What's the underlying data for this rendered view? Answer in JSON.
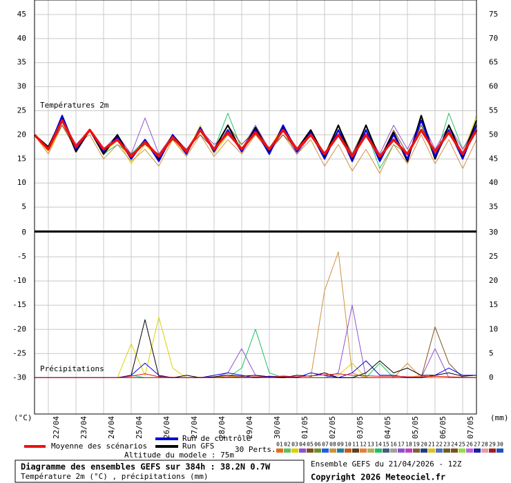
{
  "chart_data": [
    {
      "type": "line",
      "title": "Températures 2m",
      "ylim": [
        0,
        48
      ],
      "yticks": [
        5,
        10,
        15,
        20,
        25,
        30,
        35,
        40,
        45
      ],
      "y2lim": [
        30,
        78
      ],
      "y2ticks": [
        35,
        40,
        45,
        50,
        55,
        60,
        65,
        70,
        75
      ],
      "grid": true,
      "series": [
        {
          "color": "#e0d000",
          "values": [
            20,
            16.5,
            22,
            17,
            21,
            16,
            19,
            14,
            18,
            15,
            19,
            16,
            22,
            16,
            20,
            17,
            21,
            17,
            22,
            16,
            21,
            15,
            21,
            16,
            21,
            15,
            19,
            16,
            22,
            15,
            21,
            16,
            24
          ]
        },
        {
          "color": "#20c060",
          "values": [
            20,
            17,
            23,
            17,
            21,
            16,
            18,
            16,
            19,
            15,
            20,
            16,
            21,
            17,
            24.5,
            17,
            22,
            16,
            21,
            16,
            20,
            15,
            21,
            15,
            21,
            13,
            18,
            16,
            22,
            15,
            24.5,
            17,
            22
          ]
        },
        {
          "color": "#d09040",
          "values": [
            20,
            16,
            22,
            18,
            20,
            15,
            18,
            14.5,
            17,
            13.5,
            19,
            15.5,
            20,
            15.5,
            19,
            16,
            20,
            16.5,
            20,
            16,
            19,
            13.5,
            18,
            12.5,
            17,
            12,
            18,
            14,
            20,
            14,
            19,
            13,
            19
          ]
        },
        {
          "color": "#9050d0",
          "values": [
            20,
            17,
            23,
            18,
            21,
            17,
            20,
            16,
            23.5,
            16,
            20,
            17,
            21,
            18,
            20,
            17,
            22,
            17,
            21,
            16,
            20,
            16,
            21,
            16,
            21,
            16,
            22,
            17,
            23,
            17,
            22,
            17,
            22
          ]
        },
        {
          "color": "#805020",
          "values": [
            20,
            17,
            22,
            17,
            21,
            17,
            19,
            16,
            18,
            16,
            19,
            17,
            20,
            17,
            22,
            18,
            21,
            17,
            20,
            17,
            21,
            16,
            22,
            16,
            22,
            15,
            21,
            16,
            22,
            16,
            21,
            16,
            21
          ]
        },
        {
          "name": "Run GFS",
          "color": "#000000",
          "values": [
            20,
            17.5,
            23.5,
            16.5,
            21,
            16,
            20,
            15,
            19,
            15,
            20,
            16.5,
            21,
            17,
            22,
            16.5,
            21.5,
            16.5,
            21.5,
            17,
            21,
            15.5,
            22,
            15,
            22,
            15,
            20.5,
            14.5,
            24,
            15,
            22,
            15.5,
            23
          ]
        },
        {
          "name": "Run de contrôle",
          "color": "#0000e0",
          "values": [
            20,
            17,
            24,
            17,
            21,
            16.5,
            19.5,
            15,
            19,
            14.5,
            20,
            16,
            21.5,
            16.5,
            21,
            16.5,
            21,
            16,
            22,
            16.5,
            20.5,
            15,
            21,
            14.5,
            21,
            14.5,
            20,
            15,
            23,
            15.5,
            21,
            15,
            22
          ]
        },
        {
          "name": "Moyenne des scénarios",
          "color": "#ee1010",
          "values": [
            20,
            17,
            23,
            17.5,
            21,
            17,
            19,
            15.5,
            18.5,
            15.5,
            19.5,
            16.5,
            21,
            17,
            20.5,
            17,
            20.5,
            17,
            21,
            17,
            20,
            16,
            20,
            15.5,
            20,
            15.5,
            19,
            16,
            21,
            16.5,
            20.5,
            16,
            21
          ]
        }
      ]
    },
    {
      "type": "line",
      "title": "Précipitations",
      "ylim": [
        -37.5,
        0
      ],
      "yticks": [
        0,
        -5,
        -10,
        -15,
        -20,
        -25,
        -30
      ],
      "y2lim": [
        -7.5,
        30
      ],
      "y2ticks": [
        0,
        5,
        10,
        15,
        20,
        25,
        30
      ],
      "grid": true,
      "series": [
        {
          "axis": "y2",
          "color": "#e0d000",
          "values": [
            0,
            0,
            0,
            0,
            0,
            0,
            0,
            7,
            0.5,
            12.5,
            2,
            0,
            0,
            0,
            0.5,
            0,
            0,
            0,
            0.5,
            0,
            0,
            0,
            0.5,
            3,
            0,
            0,
            0,
            0,
            0.5,
            0,
            0,
            0,
            0
          ]
        },
        {
          "axis": "y2",
          "color": "#20c060",
          "values": [
            0,
            0,
            0,
            0,
            0,
            0,
            0,
            0.5,
            0,
            0,
            0,
            0,
            0,
            0,
            0,
            2,
            10,
            1,
            0,
            0,
            0,
            0,
            0,
            0,
            0,
            3,
            0,
            0,
            0,
            0,
            0,
            0,
            0
          ]
        },
        {
          "axis": "y2",
          "color": "#d09040",
          "values": [
            0,
            0,
            0,
            0,
            0,
            0,
            0,
            0,
            0,
            0,
            0,
            0,
            0,
            0,
            0,
            0,
            0,
            0,
            0,
            0,
            0,
            18,
            26,
            1,
            0,
            0,
            0,
            3,
            0,
            0,
            0,
            0,
            0
          ]
        },
        {
          "axis": "y2",
          "color": "#9050d0",
          "values": [
            0,
            0,
            0,
            0,
            0,
            0,
            0,
            0,
            0,
            0,
            0,
            0,
            0,
            0,
            1,
            6,
            0.5,
            0,
            0,
            0,
            0,
            0,
            1,
            15,
            0,
            0,
            0,
            0,
            0,
            6,
            0,
            0,
            0
          ]
        },
        {
          "axis": "y2",
          "color": "#805020",
          "values": [
            0,
            0,
            0,
            0,
            0,
            0,
            0,
            0,
            0,
            0,
            0,
            0,
            0,
            0,
            0,
            0,
            0,
            0,
            0,
            0,
            0,
            0,
            0,
            0,
            0,
            0,
            0,
            0,
            0,
            10.5,
            3,
            0,
            0
          ]
        },
        {
          "axis": "y2",
          "color": "#000000",
          "values": [
            0,
            0,
            0,
            0,
            0,
            0,
            0,
            0.5,
            12,
            0.3,
            0,
            0.5,
            0,
            0.2,
            0.5,
            0.3,
            0.5,
            0.2,
            0,
            0.5,
            0.3,
            1,
            0,
            0,
            1,
            3.5,
            1,
            2,
            0.5,
            0.5,
            1,
            0.3,
            0.5
          ]
        },
        {
          "axis": "y2",
          "color": "#0000e0",
          "values": [
            0,
            0,
            0,
            0,
            0,
            0,
            0,
            0.5,
            3,
            0.5,
            0,
            0,
            0,
            0.5,
            1,
            0.5,
            0,
            0.3,
            0.2,
            0,
            1,
            0.5,
            0,
            1,
            3.5,
            0.5,
            0.5,
            0,
            0,
            0.5,
            2,
            0.5,
            0.5
          ]
        },
        {
          "axis": "y2",
          "color": "#ee1010",
          "values": [
            0,
            0,
            0,
            0,
            0,
            0,
            0,
            0.3,
            0.8,
            0.2,
            0.1,
            0,
            0.1,
            0,
            0.2,
            0.1,
            0.2,
            0.1,
            0.3,
            0.2,
            0.4,
            0.6,
            0.8,
            0.5,
            0.4,
            0.3,
            0.3,
            0.2,
            0.2,
            0.3,
            0.2,
            0.1,
            0
          ]
        }
      ]
    }
  ],
  "x_labels": [
    "22/04",
    "23/04",
    "24/04",
    "25/04",
    "26/04",
    "27/04",
    "28/04",
    "29/04",
    "30/04",
    "01/05",
    "02/05",
    "03/05",
    "04/05",
    "05/05",
    "06/05",
    "07/05"
  ],
  "unit_left": "(°C)",
  "unit_right": "(mm)",
  "altitude": "Altitude du modele : 75m",
  "perts_label": "30 Perts.",
  "perts": [
    {
      "label": "01",
      "color": "#e07020"
    },
    {
      "label": "02",
      "color": "#60c060"
    },
    {
      "label": "03",
      "color": "#e0d000"
    },
    {
      "label": "04",
      "color": "#9050d0"
    },
    {
      "label": "05",
      "color": "#805020"
    },
    {
      "label": "06",
      "color": "#709030"
    },
    {
      "label": "07",
      "color": "#2060e0"
    },
    {
      "label": "08",
      "color": "#d09040"
    },
    {
      "label": "09",
      "color": "#2080a0"
    },
    {
      "label": "10",
      "color": "#c06020"
    },
    {
      "label": "11",
      "color": "#604020"
    },
    {
      "label": "12",
      "color": "#e08040"
    },
    {
      "label": "13",
      "color": "#b0b060"
    },
    {
      "label": "14",
      "color": "#20c060"
    },
    {
      "label": "15",
      "color": "#406080"
    },
    {
      "label": "16",
      "color": "#a0a0a0"
    },
    {
      "label": "17",
      "color": "#9050d0"
    },
    {
      "label": "18",
      "color": "#c040c0"
    },
    {
      "label": "19",
      "color": "#806040"
    },
    {
      "label": "20",
      "color": "#204080"
    },
    {
      "label": "21",
      "color": "#e0c020"
    },
    {
      "label": "22",
      "color": "#5070c0"
    },
    {
      "label": "23",
      "color": "#706020"
    },
    {
      "label": "24",
      "color": "#805020"
    },
    {
      "label": "25",
      "color": "#90e040"
    },
    {
      "label": "26",
      "color": "#c060e0"
    },
    {
      "label": "27",
      "color": "#2020a0"
    },
    {
      "label": "28",
      "color": "#e0a0a0"
    },
    {
      "label": "29",
      "color": "#a02020"
    },
    {
      "label": "30",
      "color": "#2050c0"
    }
  ],
  "info": {
    "title": "Diagramme des ensembles GEFS sur 384h : 38.2N 0.7W",
    "subtitle": "Température 2m (°C) , précipitations (mm)",
    "run": "Ensemble GEFS du 21/04/2026 - 12Z",
    "copyright": "Copyright 2026 Meteociel.fr"
  }
}
